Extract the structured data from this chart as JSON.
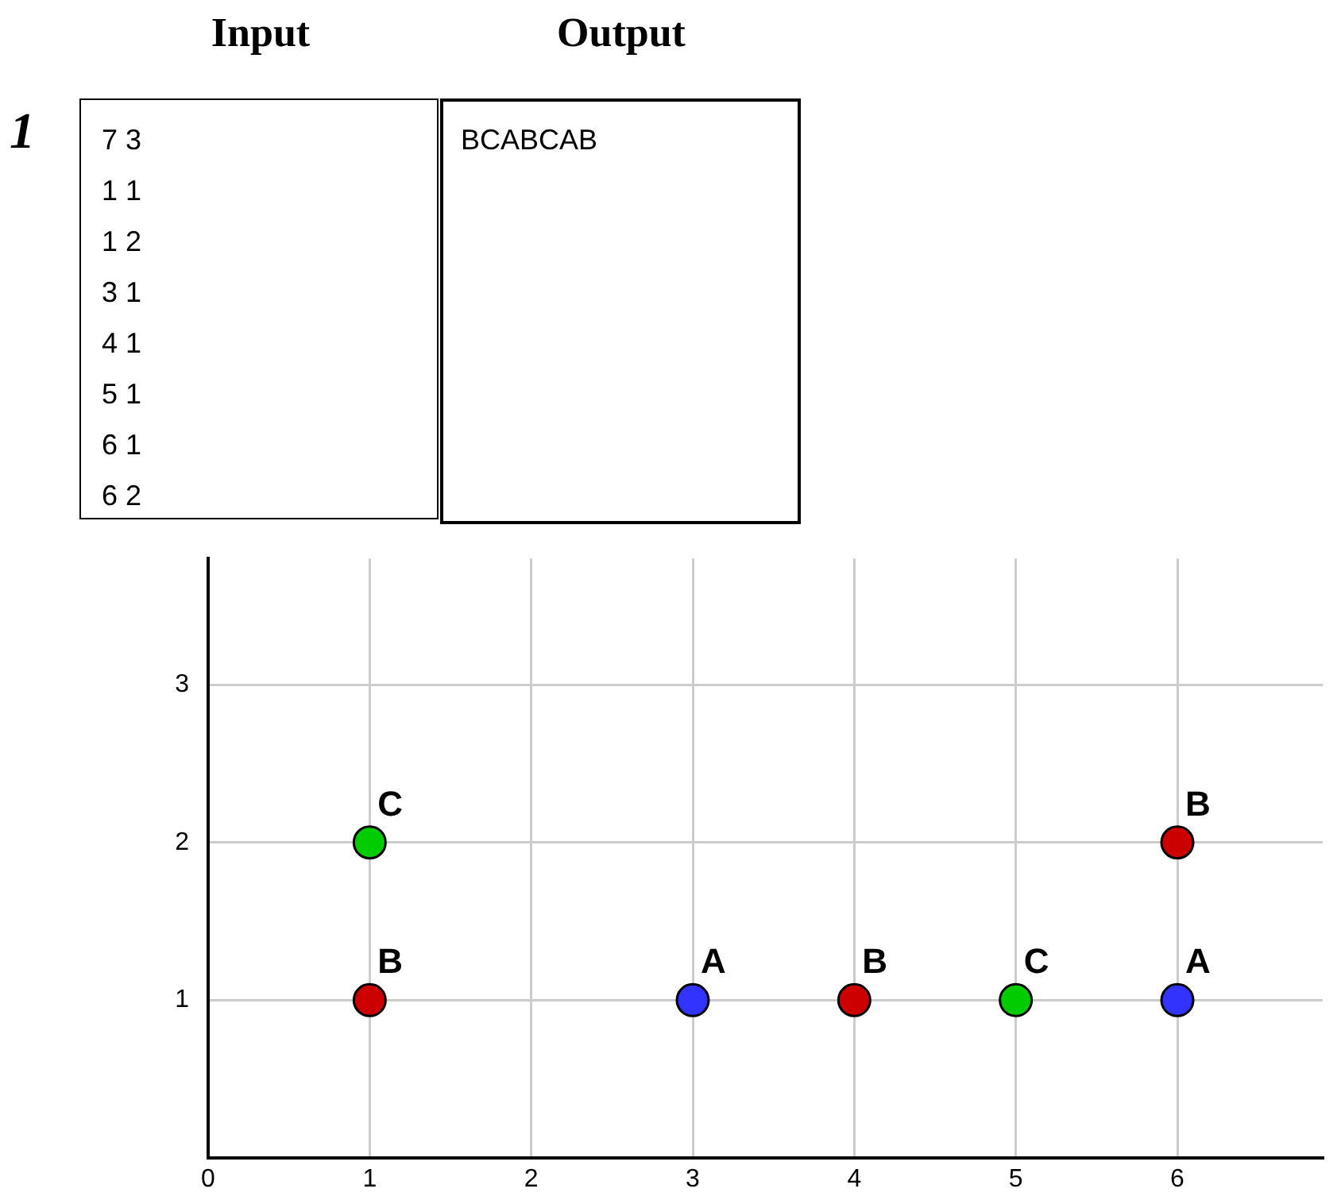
{
  "chart_data": {
    "type": "scatter",
    "annotations": [
      "1",
      "Input",
      "Output",
      "7 3\n1 1\n1 2\n3 1\n4 1\n5 1\n6 1\n6 2",
      "BCABCAB"
    ],
    "series": [
      {
        "name": "A",
        "color": "#3333ff",
        "x": [
          3,
          6
        ],
        "values": [
          1,
          1
        ]
      },
      {
        "name": "B",
        "color": "#cc0000",
        "x": [
          1,
          4,
          6
        ],
        "values": [
          1,
          1,
          2
        ]
      },
      {
        "name": "C",
        "color": "#00cc00",
        "x": [
          1,
          5
        ],
        "values": [
          2,
          1
        ]
      }
    ],
    "xlim": [
      0,
      6.9
    ],
    "ylim": [
      0,
      3.8
    ],
    "xticks": [
      0,
      1,
      2,
      3,
      4,
      5,
      6
    ],
    "yticks": [
      1,
      2,
      3
    ],
    "grid": true,
    "marker": "circle"
  }
}
